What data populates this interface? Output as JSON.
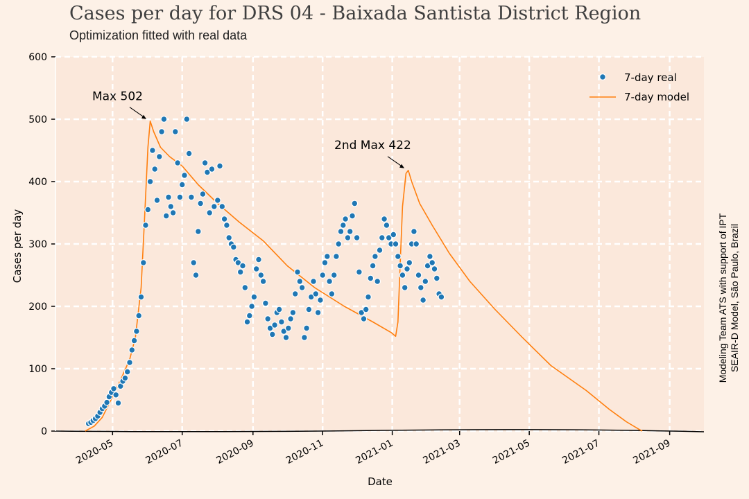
{
  "chart_data": {
    "type": "scatter",
    "title": "Cases per day for DRS 04 - Baixada Santista District Region",
    "subtitle": "Optimization fitted with real data",
    "xlabel": "Date",
    "ylabel": "Cases per day",
    "side_note": [
      "Modeling Team ATS with support of IPT",
      "SEAIR-D Model, São Paulo, Brazil"
    ],
    "xlim": [
      "2020-03-12",
      "2021-10-01"
    ],
    "ylim": [
      0,
      600
    ],
    "yticks": [
      0,
      100,
      200,
      300,
      400,
      500,
      600
    ],
    "xticks": [
      "2020-05",
      "2020-07",
      "2020-09",
      "2020-11",
      "2021-01",
      "2021-03",
      "2021-05",
      "2021-07",
      "2021-09"
    ],
    "grid": true,
    "legend_position": "top-right",
    "colors": {
      "real": "#1f77b4",
      "model": "#ff7f0e",
      "plot_bg": "#fbe8db",
      "page_bg": "#fdf1e7"
    },
    "annotations": [
      {
        "text": "Max 502",
        "x": "2020-06-02",
        "y": 497
      },
      {
        "text": "2nd Max 422",
        "x": "2021-01-14",
        "y": 418
      }
    ],
    "series": [
      {
        "name": "7-day real",
        "kind": "scatter",
        "points": [
          [
            "2020-04-10",
            12
          ],
          [
            "2020-04-12",
            14
          ],
          [
            "2020-04-14",
            17
          ],
          [
            "2020-04-16",
            20
          ],
          [
            "2020-04-18",
            24
          ],
          [
            "2020-04-20",
            30
          ],
          [
            "2020-04-22",
            36
          ],
          [
            "2020-04-24",
            40
          ],
          [
            "2020-04-26",
            46
          ],
          [
            "2020-04-28",
            55
          ],
          [
            "2020-04-30",
            62
          ],
          [
            "2020-05-02",
            68
          ],
          [
            "2020-05-04",
            58
          ],
          [
            "2020-05-06",
            45
          ],
          [
            "2020-05-08",
            72
          ],
          [
            "2020-05-10",
            80
          ],
          [
            "2020-05-12",
            85
          ],
          [
            "2020-05-14",
            95
          ],
          [
            "2020-05-16",
            110
          ],
          [
            "2020-05-18",
            130
          ],
          [
            "2020-05-20",
            145
          ],
          [
            "2020-05-22",
            160
          ],
          [
            "2020-05-24",
            185
          ],
          [
            "2020-05-26",
            215
          ],
          [
            "2020-05-28",
            270
          ],
          [
            "2020-05-30",
            330
          ],
          [
            "2020-06-01",
            355
          ],
          [
            "2020-06-03",
            400
          ],
          [
            "2020-06-05",
            450
          ],
          [
            "2020-06-07",
            420
          ],
          [
            "2020-06-09",
            370
          ],
          [
            "2020-06-11",
            440
          ],
          [
            "2020-06-13",
            480
          ],
          [
            "2020-06-15",
            500
          ],
          [
            "2020-06-17",
            345
          ],
          [
            "2020-06-19",
            375
          ],
          [
            "2020-06-21",
            360
          ],
          [
            "2020-06-23",
            350
          ],
          [
            "2020-06-25",
            480
          ],
          [
            "2020-06-27",
            430
          ],
          [
            "2020-06-29",
            375
          ],
          [
            "2020-07-01",
            395
          ],
          [
            "2020-07-03",
            410
          ],
          [
            "2020-07-05",
            500
          ],
          [
            "2020-07-07",
            445
          ],
          [
            "2020-07-09",
            375
          ],
          [
            "2020-07-11",
            270
          ],
          [
            "2020-07-13",
            250
          ],
          [
            "2020-07-15",
            320
          ],
          [
            "2020-07-17",
            365
          ],
          [
            "2020-07-19",
            380
          ],
          [
            "2020-07-21",
            430
          ],
          [
            "2020-07-23",
            415
          ],
          [
            "2020-07-25",
            350
          ],
          [
            "2020-07-27",
            420
          ],
          [
            "2020-07-29",
            360
          ],
          [
            "2020-08-01",
            370
          ],
          [
            "2020-08-03",
            425
          ],
          [
            "2020-08-05",
            360
          ],
          [
            "2020-08-07",
            340
          ],
          [
            "2020-08-09",
            330
          ],
          [
            "2020-08-11",
            310
          ],
          [
            "2020-08-13",
            300
          ],
          [
            "2020-08-15",
            295
          ],
          [
            "2020-08-17",
            275
          ],
          [
            "2020-08-19",
            270
          ],
          [
            "2020-08-21",
            255
          ],
          [
            "2020-08-23",
            265
          ],
          [
            "2020-08-25",
            230
          ],
          [
            "2020-08-27",
            175
          ],
          [
            "2020-08-29",
            185
          ],
          [
            "2020-08-31",
            200
          ],
          [
            "2020-09-02",
            215
          ],
          [
            "2020-09-04",
            260
          ],
          [
            "2020-09-06",
            275
          ],
          [
            "2020-09-08",
            250
          ],
          [
            "2020-09-10",
            240
          ],
          [
            "2020-09-12",
            205
          ],
          [
            "2020-09-14",
            180
          ],
          [
            "2020-09-16",
            165
          ],
          [
            "2020-09-18",
            155
          ],
          [
            "2020-09-20",
            170
          ],
          [
            "2020-09-22",
            190
          ],
          [
            "2020-09-24",
            195
          ],
          [
            "2020-09-26",
            175
          ],
          [
            "2020-09-28",
            160
          ],
          [
            "2020-09-30",
            150
          ],
          [
            "2020-10-02",
            165
          ],
          [
            "2020-10-04",
            180
          ],
          [
            "2020-10-06",
            190
          ],
          [
            "2020-10-08",
            220
          ],
          [
            "2020-10-10",
            255
          ],
          [
            "2020-10-12",
            240
          ],
          [
            "2020-10-14",
            230
          ],
          [
            "2020-10-16",
            150
          ],
          [
            "2020-10-18",
            165
          ],
          [
            "2020-10-20",
            195
          ],
          [
            "2020-10-22",
            215
          ],
          [
            "2020-10-24",
            240
          ],
          [
            "2020-10-26",
            220
          ],
          [
            "2020-10-28",
            190
          ],
          [
            "2020-10-30",
            210
          ],
          [
            "2020-11-01",
            250
          ],
          [
            "2020-11-03",
            270
          ],
          [
            "2020-11-05",
            280
          ],
          [
            "2020-11-07",
            240
          ],
          [
            "2020-11-09",
            220
          ],
          [
            "2020-11-11",
            250
          ],
          [
            "2020-11-13",
            280
          ],
          [
            "2020-11-15",
            300
          ],
          [
            "2020-11-17",
            320
          ],
          [
            "2020-11-19",
            330
          ],
          [
            "2020-11-21",
            340
          ],
          [
            "2020-11-23",
            310
          ],
          [
            "2020-11-25",
            320
          ],
          [
            "2020-11-27",
            345
          ],
          [
            "2020-11-29",
            365
          ],
          [
            "2020-12-01",
            310
          ],
          [
            "2020-12-03",
            255
          ],
          [
            "2020-12-05",
            190
          ],
          [
            "2020-12-07",
            180
          ],
          [
            "2020-12-09",
            195
          ],
          [
            "2020-12-11",
            215
          ],
          [
            "2020-12-13",
            245
          ],
          [
            "2020-12-15",
            265
          ],
          [
            "2020-12-17",
            280
          ],
          [
            "2020-12-19",
            240
          ],
          [
            "2020-12-21",
            290
          ],
          [
            "2020-12-23",
            310
          ],
          [
            "2020-12-25",
            340
          ],
          [
            "2020-12-27",
            330
          ],
          [
            "2020-12-29",
            310
          ],
          [
            "2020-12-31",
            300
          ],
          [
            "2021-01-02",
            315
          ],
          [
            "2021-01-04",
            300
          ],
          [
            "2021-01-06",
            280
          ],
          [
            "2021-01-08",
            265
          ],
          [
            "2021-01-10",
            250
          ],
          [
            "2021-01-12",
            230
          ],
          [
            "2021-01-14",
            260
          ],
          [
            "2021-01-16",
            270
          ],
          [
            "2021-01-18",
            300
          ],
          [
            "2021-01-20",
            320
          ],
          [
            "2021-01-22",
            300
          ],
          [
            "2021-01-24",
            250
          ],
          [
            "2021-01-26",
            230
          ],
          [
            "2021-01-28",
            210
          ],
          [
            "2021-01-30",
            240
          ],
          [
            "2021-02-01",
            265
          ],
          [
            "2021-02-03",
            280
          ],
          [
            "2021-02-05",
            270
          ],
          [
            "2021-02-07",
            260
          ],
          [
            "2021-02-09",
            245
          ],
          [
            "2021-02-11",
            220
          ],
          [
            "2021-02-13",
            215
          ]
        ]
      },
      {
        "name": "7-day model",
        "kind": "line",
        "points": [
          [
            "2020-04-07",
            0
          ],
          [
            "2020-04-15",
            8
          ],
          [
            "2020-04-22",
            22
          ],
          [
            "2020-05-01",
            55
          ],
          [
            "2020-05-10",
            90
          ],
          [
            "2020-05-16",
            115
          ],
          [
            "2020-05-21",
            150
          ],
          [
            "2020-05-26",
            230
          ],
          [
            "2020-05-29",
            340
          ],
          [
            "2020-06-01",
            455
          ],
          [
            "2020-06-03",
            497
          ],
          [
            "2020-06-06",
            480
          ],
          [
            "2020-06-12",
            455
          ],
          [
            "2020-06-20",
            440
          ],
          [
            "2020-07-01",
            425
          ],
          [
            "2020-07-15",
            395
          ],
          [
            "2020-08-01",
            365
          ],
          [
            "2020-08-20",
            335
          ],
          [
            "2020-09-10",
            305
          ],
          [
            "2020-10-01",
            265
          ],
          [
            "2020-10-25",
            230
          ],
          [
            "2020-11-20",
            200
          ],
          [
            "2020-12-15",
            175
          ],
          [
            "2020-12-31",
            158
          ],
          [
            "2021-01-04",
            152
          ],
          [
            "2021-01-06",
            175
          ],
          [
            "2021-01-08",
            270
          ],
          [
            "2021-01-10",
            360
          ],
          [
            "2021-01-13",
            413
          ],
          [
            "2021-01-15",
            418
          ],
          [
            "2021-01-18",
            400
          ],
          [
            "2021-01-25",
            365
          ],
          [
            "2021-02-05",
            330
          ],
          [
            "2021-02-20",
            285
          ],
          [
            "2021-03-10",
            240
          ],
          [
            "2021-04-01",
            195
          ],
          [
            "2021-04-25",
            150
          ],
          [
            "2021-05-20",
            105
          ],
          [
            "2021-06-20",
            65
          ],
          [
            "2021-07-10",
            35
          ],
          [
            "2021-07-25",
            15
          ],
          [
            "2021-08-05",
            3
          ],
          [
            "2021-08-08",
            0
          ]
        ]
      }
    ]
  }
}
